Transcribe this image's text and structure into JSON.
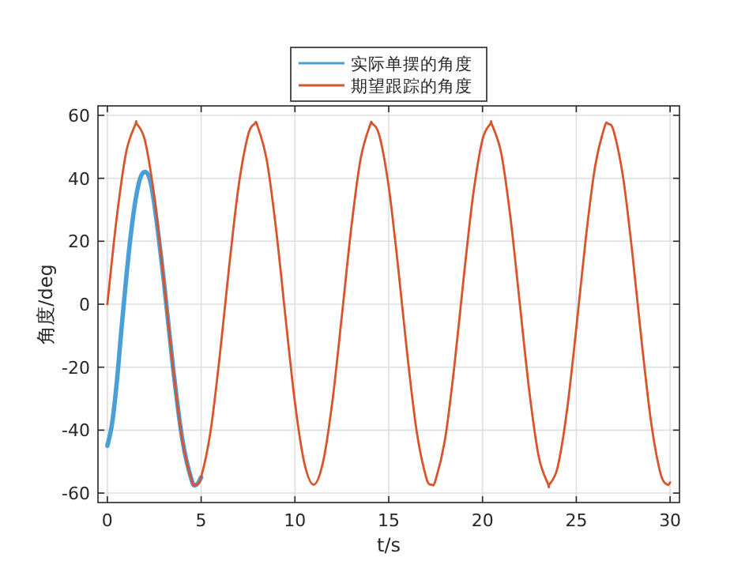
{
  "chart_data": {
    "type": "line",
    "xlabel": "t/s",
    "ylabel": "角度/deg",
    "xlim": [
      -0.5,
      30.5
    ],
    "ylim": [
      -63,
      63
    ],
    "xticks": [
      0,
      5,
      10,
      15,
      20,
      25,
      30
    ],
    "yticks": [
      -60,
      -40,
      -20,
      0,
      20,
      40,
      60
    ],
    "grid": true,
    "legend": "top",
    "series": [
      {
        "name": "实际单摆的角度",
        "color": "#4a9fd8",
        "x": [
          0,
          0.25,
          0.5,
          0.75,
          1,
          1.25,
          1.5,
          1.75,
          2,
          2.25,
          2.5,
          3,
          3.5,
          4,
          4.5,
          4.75,
          5
        ],
        "values": [
          -45,
          -38,
          -25,
          -8,
          8,
          22,
          33,
          40,
          42,
          40,
          32,
          8,
          -20,
          -43,
          -56,
          -57.3,
          -55
        ]
      },
      {
        "name": "期望跟踪的角度",
        "color": "#d9532b",
        "x": [
          0,
          0.5,
          1,
          1.5,
          1.57,
          2,
          2.5,
          3,
          3.5,
          4,
          4.5,
          4.71,
          5,
          5.5,
          6,
          6.5,
          7,
          7.5,
          7.85,
          8,
          8.5,
          9,
          9.5,
          10,
          10.5,
          11,
          11.5,
          12,
          12.5,
          13,
          13.5,
          14,
          14.14,
          14.5,
          15,
          15.5,
          16,
          16.5,
          17,
          17.28,
          17.5,
          18,
          18.5,
          19,
          19.5,
          20,
          20.42,
          20.5,
          21,
          21.5,
          22,
          22.5,
          23,
          23.5,
          23.56,
          24,
          24.5,
          25,
          25.5,
          26,
          26.5,
          26.7,
          27,
          27.5,
          28,
          28.5,
          29,
          29.5,
          29.85,
          30
        ],
        "values": [
          0,
          27.5,
          48.2,
          57.2,
          57.3,
          52.1,
          34.3,
          8.1,
          -20.1,
          -43.4,
          -56.0,
          -57.3,
          -54.9,
          -40.4,
          -16.0,
          12.3,
          37.6,
          53.7,
          57.3,
          56.7,
          45.7,
          23.6,
          -4.3,
          -31.2,
          -50.4,
          -57.3,
          -50.1,
          -30.7,
          -3.8,
          24.1,
          46.1,
          56.8,
          57.3,
          53.6,
          37.3,
          11.8,
          -16.5,
          -40.8,
          -55.1,
          -57.3,
          -55.9,
          -43.0,
          -19.6,
          8.6,
          34.7,
          52.3,
          57.3,
          57.1,
          47.9,
          27.0,
          -0.5,
          -27.9,
          -48.5,
          -57.2,
          -57.3,
          -51.9,
          -33.9,
          -7.6,
          20.6,
          43.7,
          56.2,
          57.3,
          54.8,
          40.1,
          15.5,
          -12.8,
          -38.0,
          -54.0,
          -57.3,
          -56.6
        ]
      }
    ]
  }
}
